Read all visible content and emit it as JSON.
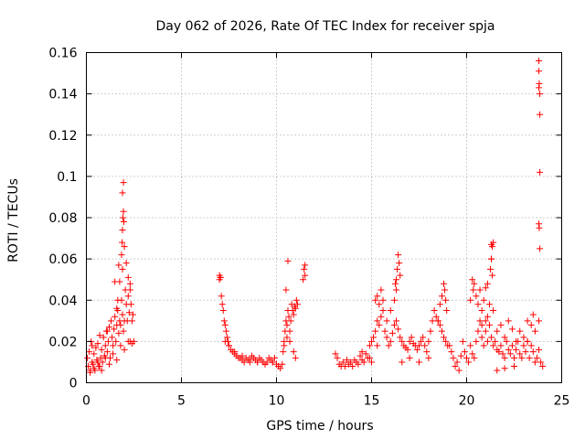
{
  "chart_data": {
    "type": "scatter",
    "title": "Day 062 of 2026, Rate Of TEC Index for receiver spja",
    "xlabel": "GPS time / hours",
    "ylabel": "ROTI / TECUs",
    "xlim": [
      0,
      25
    ],
    "ylim": [
      0,
      0.16
    ],
    "x_ticks": [
      "0",
      "5",
      "10",
      "15",
      "20",
      "25"
    ],
    "y_ticks": [
      "0",
      "0.02",
      "0.04",
      "0.06",
      "0.08",
      "0.1",
      "0.12",
      "0.14",
      "0.16"
    ],
    "grid": true,
    "marker": "plus",
    "color": "#ff0000",
    "series": [
      {
        "x": [
          0.05,
          0.1,
          0.15,
          0.2,
          0.25,
          0.3,
          0.35,
          0.4,
          0.45,
          0.5,
          0.55,
          0.6,
          0.65,
          0.7,
          0.75,
          0.8,
          0.85,
          0.9,
          0.95,
          1.0,
          1.05,
          1.1,
          1.15,
          1.2,
          1.25,
          1.3,
          1.35,
          1.4,
          1.45,
          1.5,
          1.55,
          1.6,
          1.65,
          1.7,
          1.75,
          1.8,
          1.85,
          1.9,
          1.95,
          2.0,
          2.05,
          2.1,
          2.15,
          2.2,
          2.25,
          2.3,
          2.35,
          2.4,
          2.45,
          2.5,
          0.2,
          0.4,
          0.6,
          0.8,
          1.0,
          1.2,
          1.4,
          1.6,
          1.8,
          2.0,
          2.2,
          2.4,
          0.3,
          0.7,
          1.1,
          1.5,
          1.9,
          2.3,
          1.85,
          1.88,
          1.9,
          1.92,
          1.95,
          1.97,
          2.0,
          1.9,
          1.95,
          1.7,
          1.75,
          2.2,
          2.3,
          2.1,
          1.6,
          1.65,
          7.0,
          7.05,
          7.1,
          7.15,
          7.2,
          7.25,
          7.3,
          7.35,
          7.4,
          7.45,
          7.5,
          7.6,
          7.7,
          7.8,
          7.9,
          8.0,
          8.1,
          8.2,
          8.3,
          8.4,
          8.5,
          8.6,
          8.7,
          8.8,
          8.9,
          9.0,
          9.1,
          9.2,
          9.3,
          9.4,
          9.5,
          9.6,
          9.7,
          9.8,
          9.9,
          10.0,
          10.1,
          10.2,
          7.3,
          7.5,
          7.8,
          8.2,
          8.6,
          9.0,
          9.4,
          9.8,
          7.0,
          7.05,
          10.3,
          10.35,
          10.4,
          10.45,
          10.5,
          10.55,
          10.6,
          10.65,
          10.7,
          10.75,
          10.8,
          10.85,
          10.9,
          10.95,
          11.0,
          11.05,
          11.1,
          10.5,
          10.6,
          10.7,
          10.9,
          11.0,
          10.4,
          10.55,
          11.4,
          11.45,
          11.5,
          11.5,
          13.1,
          13.2,
          13.3,
          13.4,
          13.5,
          13.6,
          13.7,
          13.8,
          13.9,
          14.0,
          14.1,
          14.2,
          14.3,
          14.4,
          14.5,
          14.6,
          14.7,
          14.8,
          14.9,
          15.0,
          15.1,
          15.2,
          15.3,
          15.4,
          15.5,
          15.6,
          15.7,
          15.8,
          15.9,
          16.0,
          16.1,
          16.2,
          16.3,
          16.4,
          16.5,
          16.6,
          16.7,
          16.8,
          16.9,
          17.0,
          17.1,
          17.2,
          17.3,
          17.4,
          17.5,
          17.6,
          17.7,
          17.8,
          17.9,
          18.0,
          18.1,
          18.2,
          18.3,
          18.4,
          18.5,
          18.6,
          18.7,
          18.8,
          18.9,
          19.0,
          15.2,
          15.3,
          15.4,
          15.5,
          15.6,
          15.8,
          16.0,
          16.2,
          16.3,
          16.35,
          16.4,
          16.45,
          16.5,
          16.3,
          16.25,
          18.7,
          18.8,
          18.85,
          18.9,
          18.95,
          18.6,
          18.5,
          14.5,
          14.9,
          15.0,
          15.3,
          16.6,
          17.0,
          17.5,
          18.0,
          19.1,
          19.2,
          19.3,
          19.4,
          19.5,
          19.6,
          19.7,
          19.8,
          19.9,
          20.0,
          20.1,
          20.2,
          20.3,
          20.4,
          20.5,
          20.6,
          20.7,
          20.8,
          20.9,
          21.0,
          21.1,
          21.2,
          21.3,
          21.4,
          21.5,
          21.6,
          21.7,
          21.8,
          21.9,
          22.0,
          22.1,
          22.2,
          22.3,
          22.4,
          22.5,
          22.6,
          22.7,
          22.8,
          22.9,
          23.0,
          23.1,
          23.2,
          23.3,
          23.4,
          23.5,
          23.6,
          23.7,
          23.8,
          23.9,
          24.0,
          20.2,
          20.3,
          20.35,
          20.4,
          20.5,
          20.6,
          20.7,
          20.8,
          20.9,
          21.0,
          21.1,
          21.2,
          21.3,
          21.35,
          21.4,
          21.25,
          21.3,
          21.3,
          21.35,
          21.1,
          21.0,
          20.8,
          21.4,
          21.6,
          21.8,
          22.0,
          22.2,
          22.4,
          22.6,
          22.8,
          23.0,
          23.2,
          23.4,
          23.6,
          23.2,
          23.5,
          23.8,
          22.5,
          22.0,
          21.6,
          23.8,
          23.8,
          23.82,
          23.85,
          23.85,
          23.85,
          23.8,
          23.82,
          23.85,
          23.8
        ],
        "y": [
          0.012,
          0.008,
          0.015,
          0.006,
          0.02,
          0.01,
          0.009,
          0.014,
          0.006,
          0.017,
          0.011,
          0.019,
          0.008,
          0.023,
          0.012,
          0.016,
          0.01,
          0.022,
          0.013,
          0.018,
          0.025,
          0.015,
          0.02,
          0.027,
          0.012,
          0.03,
          0.022,
          0.018,
          0.026,
          0.032,
          0.02,
          0.028,
          0.035,
          0.024,
          0.03,
          0.028,
          0.04,
          0.033,
          0.025,
          0.03,
          0.045,
          0.038,
          0.03,
          0.042,
          0.034,
          0.02,
          0.038,
          0.03,
          0.033,
          0.02,
          0.005,
          0.007,
          0.01,
          0.006,
          0.012,
          0.009,
          0.014,
          0.011,
          0.018,
          0.016,
          0.02,
          0.019,
          0.018,
          0.008,
          0.025,
          0.049,
          0.055,
          0.045,
          0.062,
          0.068,
          0.074,
          0.08,
          0.083,
          0.078,
          0.066,
          0.092,
          0.097,
          0.057,
          0.049,
          0.051,
          0.048,
          0.058,
          0.036,
          0.04,
          0.052,
          0.051,
          0.042,
          0.038,
          0.035,
          0.03,
          0.028,
          0.025,
          0.022,
          0.02,
          0.018,
          0.016,
          0.015,
          0.014,
          0.013,
          0.012,
          0.012,
          0.011,
          0.01,
          0.012,
          0.011,
          0.01,
          0.013,
          0.012,
          0.011,
          0.01,
          0.012,
          0.011,
          0.01,
          0.009,
          0.01,
          0.012,
          0.011,
          0.01,
          0.012,
          0.009,
          0.008,
          0.007,
          0.02,
          0.018,
          0.015,
          0.013,
          0.011,
          0.01,
          0.009,
          0.01,
          0.05,
          0.051,
          0.009,
          0.015,
          0.02,
          0.025,
          0.03,
          0.028,
          0.035,
          0.032,
          0.025,
          0.03,
          0.038,
          0.035,
          0.033,
          0.037,
          0.036,
          0.04,
          0.038,
          0.045,
          0.059,
          0.02,
          0.015,
          0.012,
          0.018,
          0.022,
          0.05,
          0.055,
          0.052,
          0.057,
          0.014,
          0.012,
          0.009,
          0.008,
          0.01,
          0.008,
          0.011,
          0.009,
          0.01,
          0.008,
          0.011,
          0.01,
          0.009,
          0.013,
          0.011,
          0.01,
          0.014,
          0.012,
          0.018,
          0.02,
          0.022,
          0.025,
          0.03,
          0.028,
          0.032,
          0.035,
          0.025,
          0.022,
          0.018,
          0.02,
          0.024,
          0.028,
          0.03,
          0.026,
          0.022,
          0.02,
          0.018,
          0.017,
          0.016,
          0.02,
          0.022,
          0.019,
          0.018,
          0.016,
          0.018,
          0.02,
          0.022,
          0.018,
          0.015,
          0.02,
          0.025,
          0.03,
          0.035,
          0.032,
          0.03,
          0.028,
          0.025,
          0.022,
          0.02,
          0.018,
          0.04,
          0.042,
          0.038,
          0.045,
          0.04,
          0.03,
          0.035,
          0.04,
          0.05,
          0.055,
          0.062,
          0.058,
          0.052,
          0.045,
          0.048,
          0.042,
          0.048,
          0.045,
          0.04,
          0.035,
          0.038,
          0.03,
          0.015,
          0.012,
          0.01,
          0.018,
          0.01,
          0.012,
          0.01,
          0.012,
          0.018,
          0.015,
          0.012,
          0.008,
          0.01,
          0.006,
          0.013,
          0.02,
          0.015,
          0.012,
          0.01,
          0.018,
          0.014,
          0.012,
          0.02,
          0.025,
          0.03,
          0.022,
          0.018,
          0.025,
          0.02,
          0.028,
          0.022,
          0.018,
          0.02,
          0.016,
          0.015,
          0.018,
          0.014,
          0.012,
          0.02,
          0.016,
          0.014,
          0.018,
          0.012,
          0.016,
          0.02,
          0.014,
          0.012,
          0.018,
          0.015,
          0.02,
          0.012,
          0.018,
          0.015,
          0.01,
          0.012,
          0.016,
          0.01,
          0.008,
          0.04,
          0.05,
          0.045,
          0.048,
          0.042,
          0.038,
          0.045,
          0.035,
          0.04,
          0.046,
          0.048,
          0.038,
          0.06,
          0.066,
          0.068,
          0.055,
          0.06,
          0.067,
          0.052,
          0.032,
          0.03,
          0.028,
          0.035,
          0.025,
          0.028,
          0.022,
          0.03,
          0.026,
          0.02,
          0.025,
          0.022,
          0.03,
          0.028,
          0.025,
          0.02,
          0.033,
          0.03,
          0.008,
          0.007,
          0.006,
          0.156,
          0.151,
          0.145,
          0.14,
          0.13,
          0.102,
          0.077,
          0.075,
          0.065,
          0.143
        ]
      }
    ]
  }
}
